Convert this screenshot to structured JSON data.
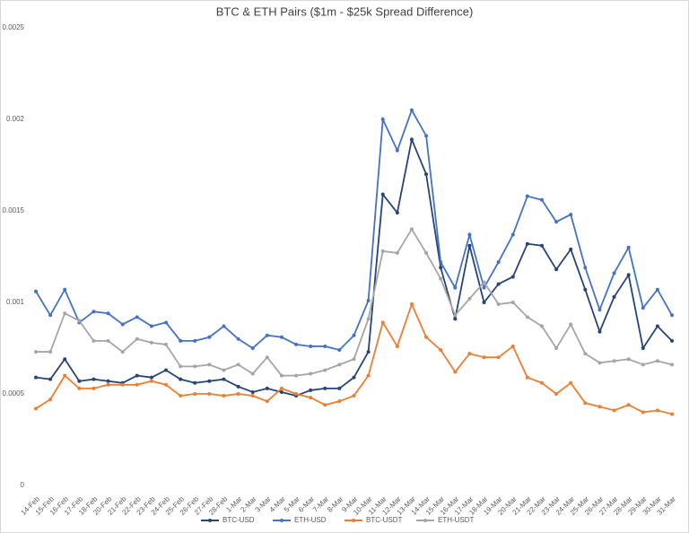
{
  "chart_data": {
    "type": "line",
    "title": "BTC & ETH Pairs ($1m - $25k Spread Difference)",
    "categories": [
      "14-Feb",
      "15-Feb",
      "16-Feb",
      "17-Feb",
      "18-Feb",
      "20-Feb",
      "21-Feb",
      "22-Feb",
      "23-Feb",
      "24-Feb",
      "25-Feb",
      "26-Feb",
      "27-Feb",
      "28-Feb",
      "1-Mar",
      "2-Mar",
      "3-Mar",
      "4-Mar",
      "5-Mar",
      "6-Mar",
      "7-Mar",
      "8-Mar",
      "9-Mar",
      "10-Mar",
      "11-Mar",
      "12-Mar",
      "13-Mar",
      "14-Mar",
      "15-Mar",
      "16-Mar",
      "17-Mar",
      "18-Mar",
      "19-Mar",
      "20-Mar",
      "21-Mar",
      "22-Mar",
      "23-Mar",
      "24-Mar",
      "25-Mar",
      "26-Mar",
      "27-Mar",
      "28-Mar",
      "29-Mar",
      "30-Mar",
      "31-Mar"
    ],
    "series": [
      {
        "name": "BTC-USD",
        "color": "#264478",
        "values": [
          0.00059,
          0.00058,
          0.00069,
          0.00057,
          0.00058,
          0.00057,
          0.00056,
          0.0006,
          0.00059,
          0.00063,
          0.00058,
          0.00056,
          0.00057,
          0.00058,
          0.00054,
          0.00051,
          0.00053,
          0.00051,
          0.00049,
          0.00052,
          0.00053,
          0.00053,
          0.00059,
          0.00073,
          0.00159,
          0.00149,
          0.00189,
          0.0017,
          0.00119,
          0.00091,
          0.00131,
          0.001,
          0.0011,
          0.00114,
          0.00132,
          0.00131,
          0.00118,
          0.00129,
          0.00107,
          0.00084,
          0.00103,
          0.00115,
          0.00075,
          0.00087,
          0.00079
        ]
      },
      {
        "name": "ETH-USD",
        "color": "#4472c4",
        "values": [
          0.00106,
          0.00093,
          0.00107,
          0.00089,
          0.00095,
          0.00094,
          0.00088,
          0.00092,
          0.00087,
          0.00089,
          0.00079,
          0.00079,
          0.00081,
          0.00087,
          0.0008,
          0.00075,
          0.00082,
          0.00081,
          0.00077,
          0.00076,
          0.00076,
          0.00074,
          0.00082,
          0.00101,
          0.002,
          0.00183,
          0.00205,
          0.00191,
          0.00122,
          0.00108,
          0.00137,
          0.00108,
          0.00122,
          0.00137,
          0.00158,
          0.00156,
          0.00144,
          0.00148,
          0.00119,
          0.00096,
          0.00116,
          0.0013,
          0.00097,
          0.00107,
          0.00093
        ]
      },
      {
        "name": "BTC-USDT",
        "color": "#ed7d31",
        "values": [
          0.00042,
          0.00047,
          0.0006,
          0.00053,
          0.00053,
          0.00055,
          0.00055,
          0.00055,
          0.00057,
          0.00055,
          0.00049,
          0.0005,
          0.0005,
          0.00049,
          0.0005,
          0.00049,
          0.00046,
          0.00053,
          0.0005,
          0.00048,
          0.00044,
          0.00046,
          0.00049,
          0.0006,
          0.00089,
          0.00076,
          0.00099,
          0.00081,
          0.00074,
          0.00062,
          0.00072,
          0.0007,
          0.0007,
          0.00076,
          0.00059,
          0.00056,
          0.0005,
          0.00056,
          0.00045,
          0.00043,
          0.00041,
          0.00044,
          0.0004,
          0.00041,
          0.00039
        ]
      },
      {
        "name": "ETH-USDT",
        "color": "#a5a5a5",
        "values": [
          0.00073,
          0.00073,
          0.00094,
          0.0009,
          0.00079,
          0.00079,
          0.00073,
          0.0008,
          0.00078,
          0.00077,
          0.00065,
          0.00065,
          0.00066,
          0.00063,
          0.00066,
          0.00061,
          0.0007,
          0.0006,
          0.0006,
          0.00061,
          0.00063,
          0.00066,
          0.00069,
          0.00091,
          0.00128,
          0.00127,
          0.0014,
          0.00127,
          0.00113,
          0.00093,
          0.00102,
          0.00111,
          0.00099,
          0.001,
          0.00092,
          0.00087,
          0.00075,
          0.00088,
          0.00072,
          0.00067,
          0.00068,
          0.00069,
          0.00066,
          0.00068,
          0.00066
        ]
      }
    ],
    "ylim": [
      0,
      0.0025
    ],
    "yticks": [
      0,
      0.0005,
      0.001,
      0.0015,
      0.002,
      0.0025
    ],
    "grid": false,
    "legend": "bottom"
  }
}
